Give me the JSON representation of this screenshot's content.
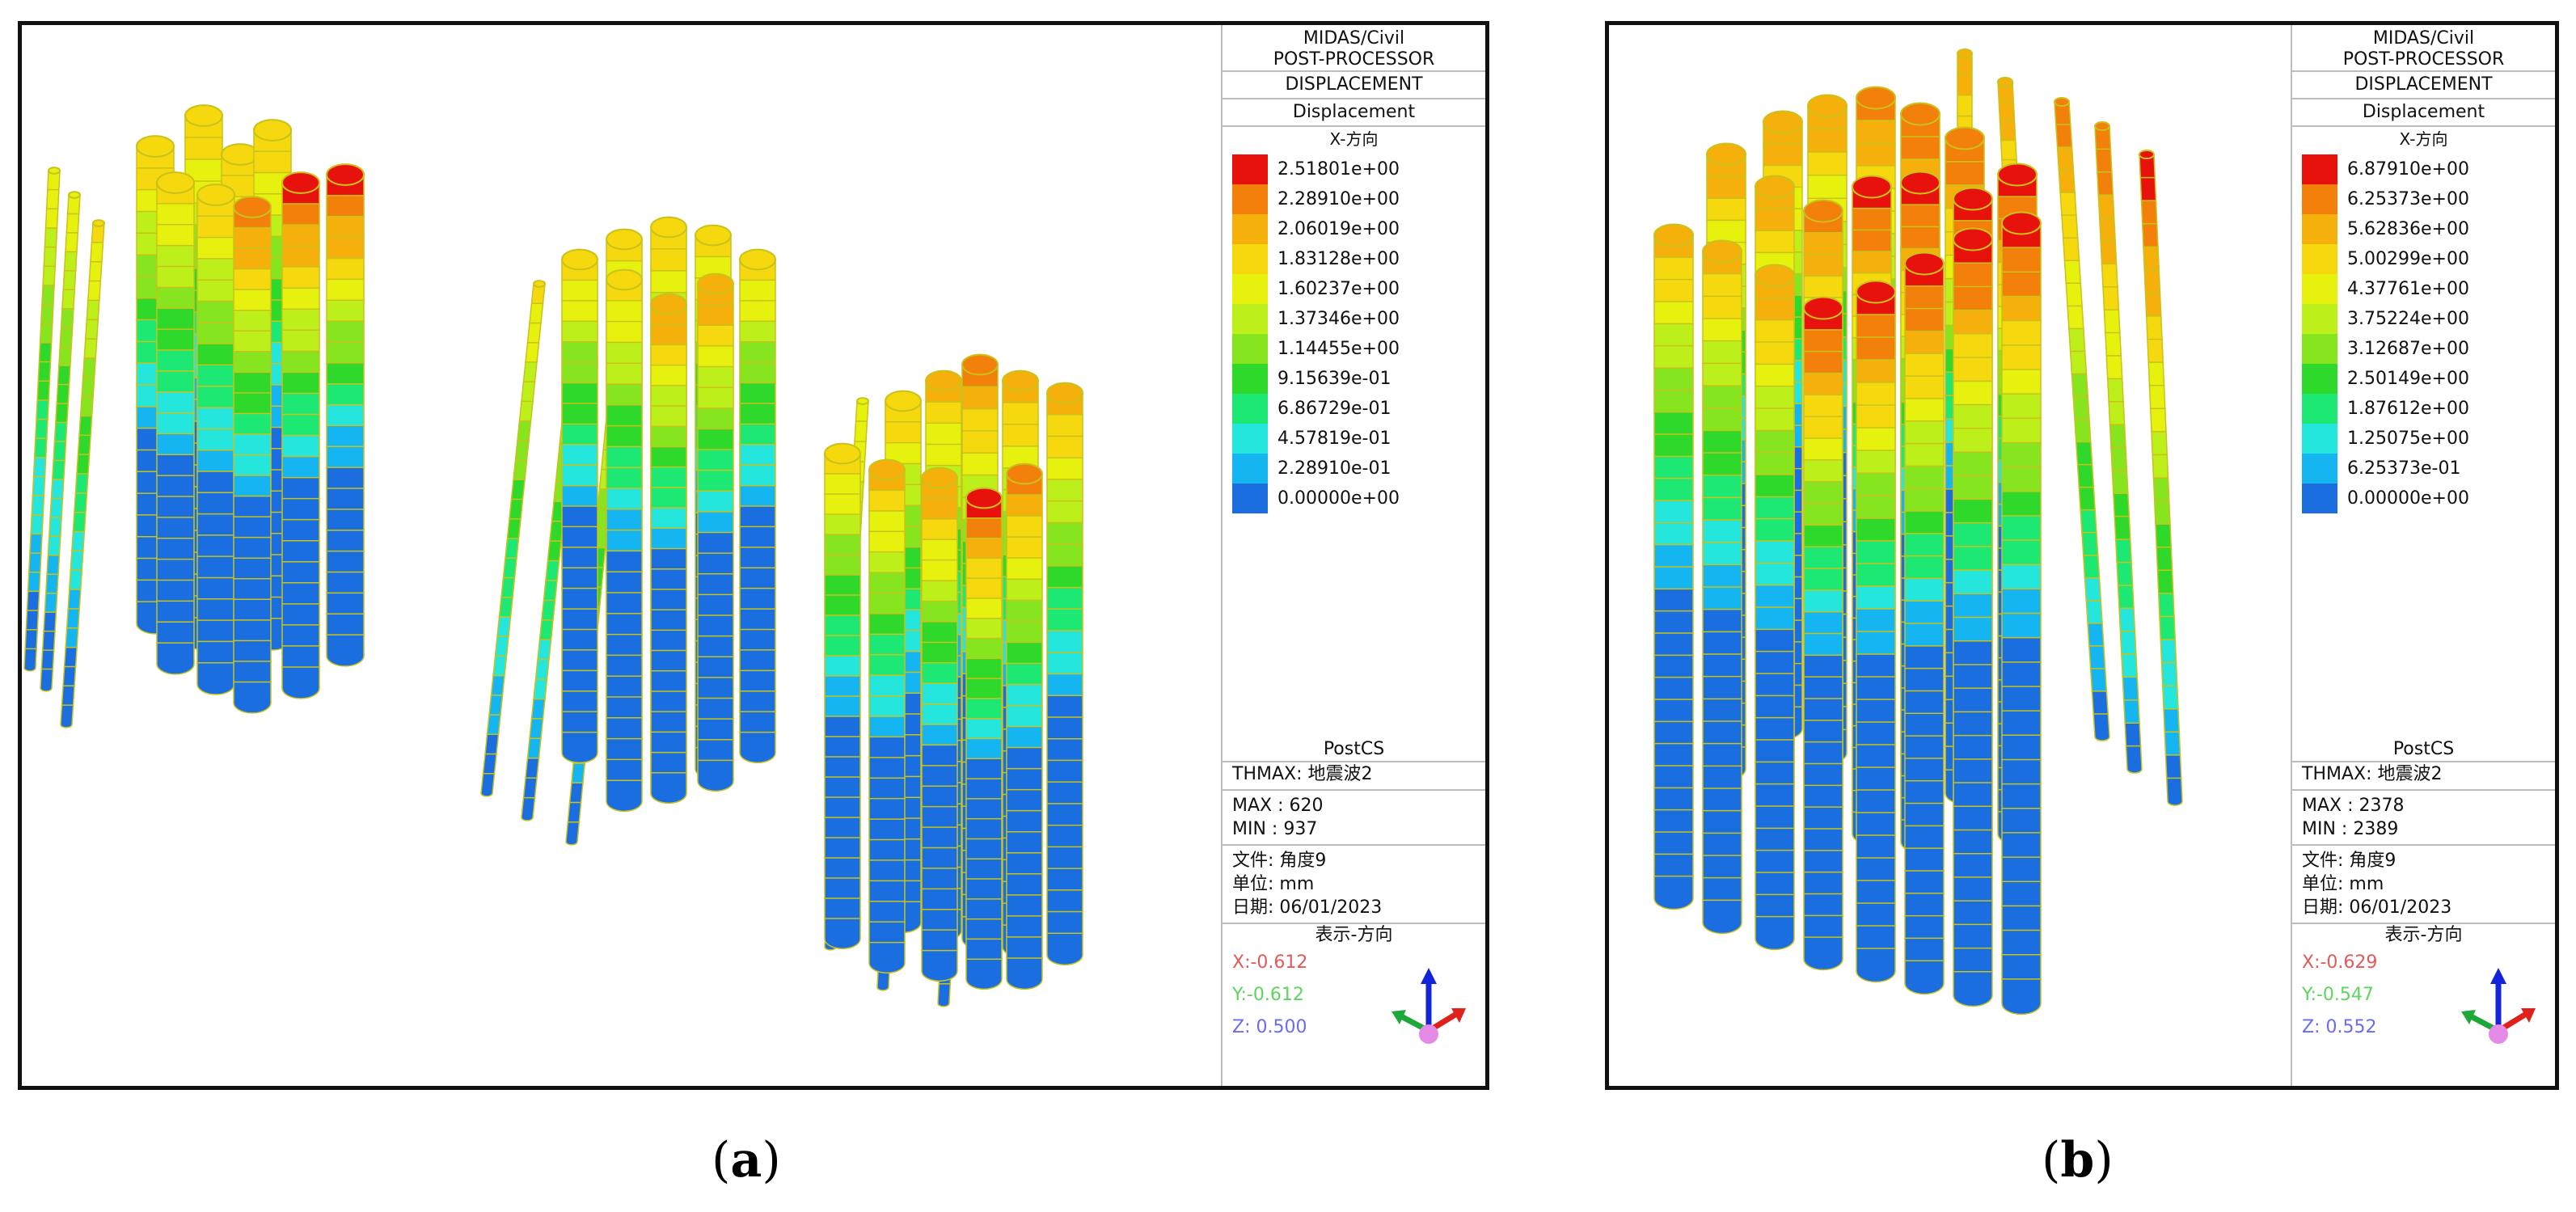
{
  "panels": [
    {
      "id": "a",
      "caption_open": "(",
      "caption_letter": "a",
      "caption_close": ")",
      "legend": {
        "program": "MIDAS/Civil",
        "module": "POST-PROCESSOR",
        "result_type": "DISPLACEMENT",
        "component": "Displacement",
        "direction": "X-方向",
        "scale_values": [
          "2.51801e+00",
          "2.28910e+00",
          "2.06019e+00",
          "1.83128e+00",
          "1.60237e+00",
          "1.37346e+00",
          "1.14455e+00",
          "9.15639e-01",
          "6.86729e-01",
          "4.57819e-01",
          "2.28910e-01",
          "0.00000e+00"
        ],
        "stage": "PostCS",
        "thmax": "THMAX: 地震波2",
        "max": "MAX : 620",
        "min": "MIN : 937",
        "file": "文件: 角度9",
        "unit": "单位: mm",
        "date": "日期: 06/01/2023",
        "view_dir_label": "表示-方向",
        "view_x": "X:-0.612",
        "view_y": "Y:-0.612",
        "view_z": "Z: 0.500"
      }
    },
    {
      "id": "b",
      "caption_open": "(",
      "caption_letter": "b",
      "caption_close": ")",
      "legend": {
        "program": "MIDAS/Civil",
        "module": "POST-PROCESSOR",
        "result_type": "DISPLACEMENT",
        "component": "Displacement",
        "direction": "X-方向",
        "scale_values": [
          "6.87910e+00",
          "6.25373e+00",
          "5.62836e+00",
          "5.00299e+00",
          "4.37761e+00",
          "3.75224e+00",
          "3.12687e+00",
          "2.50149e+00",
          "1.87612e+00",
          "1.25075e+00",
          "6.25373e-01",
          "0.00000e+00"
        ],
        "stage": "PostCS",
        "thmax": "THMAX: 地震波2",
        "max": "MAX : 2378",
        "min": "MIN : 2389",
        "file": "文件: 角度9",
        "unit": "单位: mm",
        "date": "日期: 06/01/2023",
        "view_dir_label": "表示-方向",
        "view_x": "X:-0.629",
        "view_y": "Y:-0.547",
        "view_z": "Z: 0.552"
      }
    }
  ],
  "colors": {
    "scale": [
      "#e8120c",
      "#f2800b",
      "#f6b00c",
      "#f5d80e",
      "#e6f20e",
      "#bdf01a",
      "#86e51f",
      "#2fd92b",
      "#1ee874",
      "#25e6dd",
      "#14b5f0",
      "#1a6ee0"
    ],
    "frame": "#111111",
    "pile_ring": "#c9c21a"
  },
  "icons": {
    "triad": "axis-triad-icon"
  }
}
